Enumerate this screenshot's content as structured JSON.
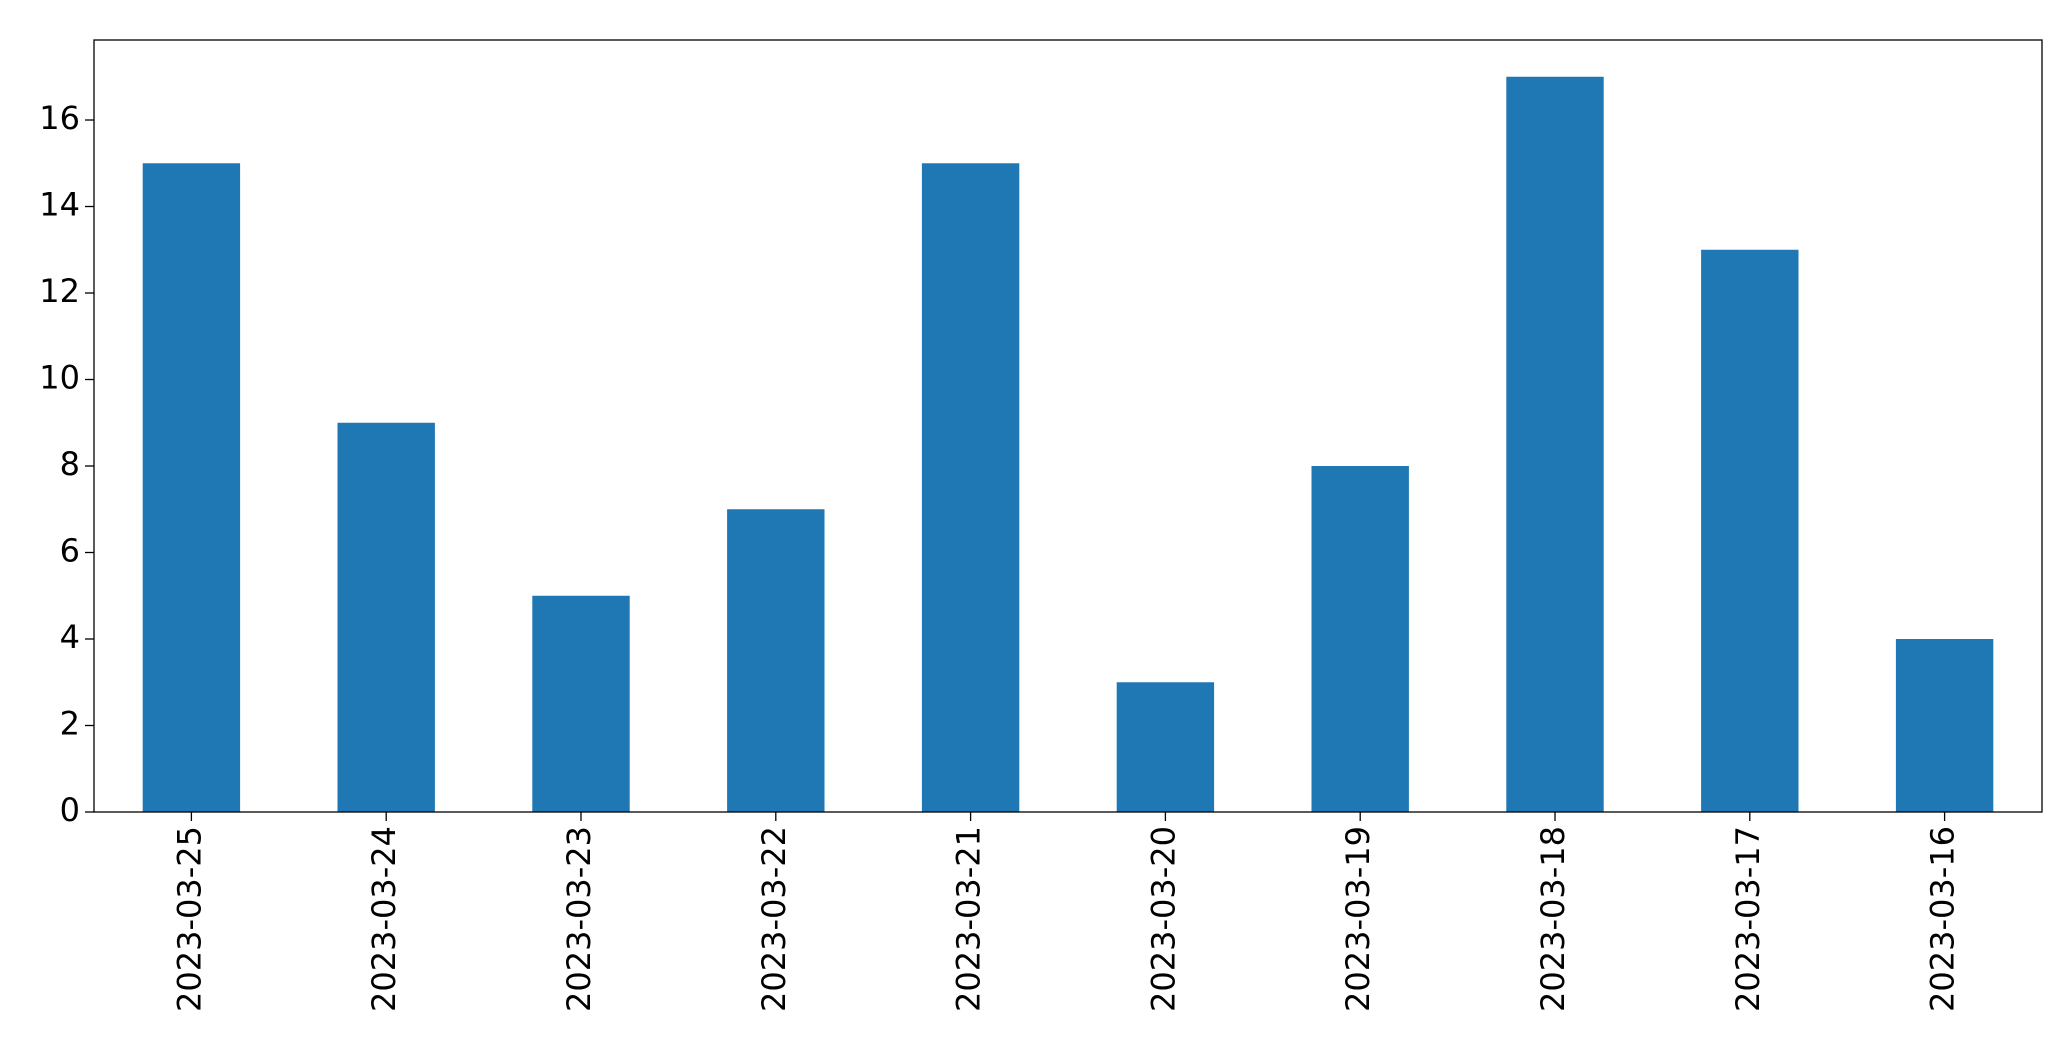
{
  "chart_data": {
    "type": "bar",
    "categories": [
      "2023-03-25",
      "2023-03-24",
      "2023-03-23",
      "2023-03-22",
      "2023-03-21",
      "2023-03-20",
      "2023-03-19",
      "2023-03-18",
      "2023-03-17",
      "2023-03-16"
    ],
    "values": [
      15,
      9,
      5,
      7,
      15,
      3,
      8,
      17,
      13,
      4
    ],
    "color": "#1f77b4",
    "ylim": [
      0,
      17.85
    ],
    "yticks": [
      0,
      2,
      4,
      6,
      8,
      10,
      12,
      14,
      16
    ],
    "grid": false
  }
}
